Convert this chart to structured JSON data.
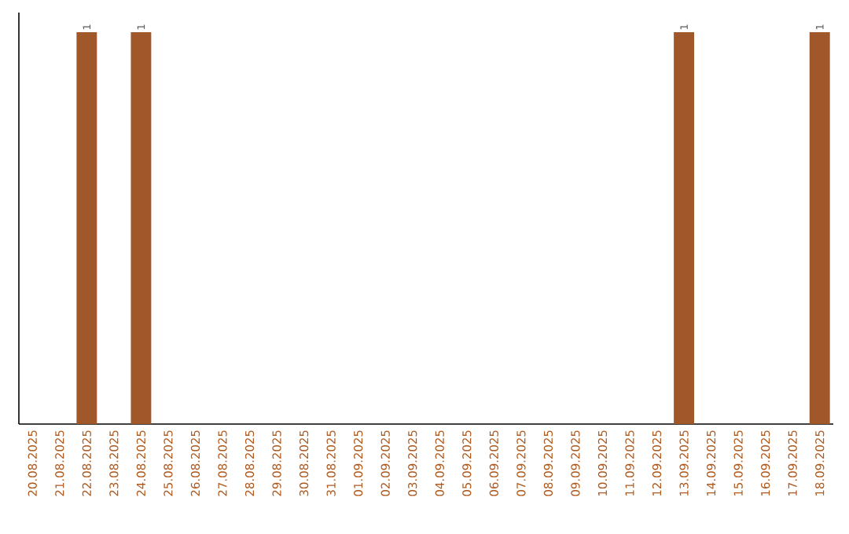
{
  "chart_data": {
    "type": "bar",
    "ylim": [
      0,
      1.05
    ],
    "color": "#a0572a",
    "categories": [
      "20.08.2025",
      "21.08.2025",
      "22.08.2025",
      "23.08.2025",
      "24.08.2025",
      "25.08.2025",
      "26.08.2025",
      "27.08.2025",
      "28.08.2025",
      "29.08.2025",
      "30.08.2025",
      "31.08.2025",
      "01.09.2025",
      "02.09.2025",
      "03.09.2025",
      "04.09.2025",
      "05.09.2025",
      "06.09.2025",
      "07.09.2025",
      "08.09.2025",
      "09.09.2025",
      "10.09.2025",
      "11.09.2025",
      "12.09.2025",
      "13.09.2025",
      "14.09.2025",
      "15.09.2025",
      "16.09.2025",
      "17.09.2025",
      "18.09.2025"
    ],
    "values": [
      0,
      0,
      1,
      0,
      1,
      0,
      0,
      0,
      0,
      0,
      0,
      0,
      0,
      0,
      0,
      0,
      0,
      0,
      0,
      0,
      0,
      0,
      0,
      0,
      1,
      0,
      0,
      0,
      0,
      1
    ],
    "value_labels": [
      null,
      null,
      "1",
      null,
      "1",
      null,
      null,
      null,
      null,
      null,
      null,
      null,
      null,
      null,
      null,
      null,
      null,
      null,
      null,
      null,
      null,
      null,
      null,
      null,
      "1",
      null,
      null,
      null,
      null,
      "1"
    ]
  }
}
